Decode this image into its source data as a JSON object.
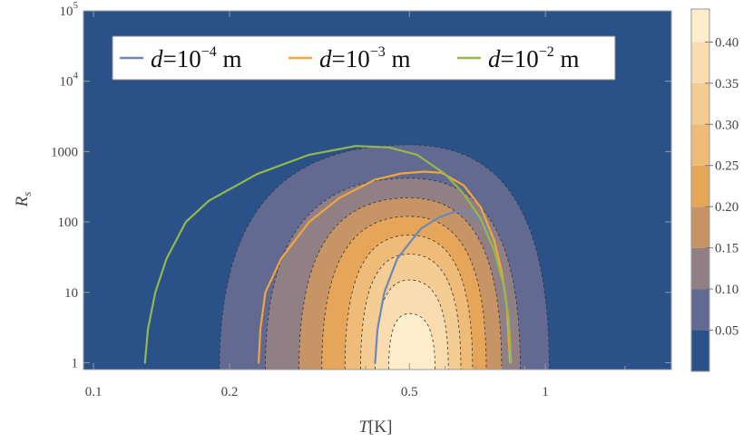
{
  "chart_data": {
    "type": "contour",
    "xlabel": "T[K]",
    "ylabel": "R_s",
    "x_scale": "log",
    "y_scale": "log",
    "xlim": [
      0.095,
      1.9
    ],
    "ylim": [
      0.8,
      100000
    ],
    "x_ticks": [
      {
        "value": 0.1,
        "label": "0.1"
      },
      {
        "value": 0.2,
        "label": "0.2"
      },
      {
        "value": 0.5,
        "label": "0.5"
      },
      {
        "value": 1,
        "label": "1"
      }
    ],
    "y_ticks": [
      {
        "value": 1,
        "label": "1",
        "sup": ""
      },
      {
        "value": 10,
        "label": "10",
        "sup": ""
      },
      {
        "value": 100,
        "label": "100",
        "sup": ""
      },
      {
        "value": 1000,
        "label": "1000",
        "sup": ""
      },
      {
        "value": 10000,
        "label": "10",
        "sup": "4"
      },
      {
        "value": 100000,
        "label": "10",
        "sup": "5"
      }
    ],
    "colorbar": {
      "min": 0,
      "max": 0.44,
      "ticks": [
        "0.05",
        "0.10",
        "0.15",
        "0.20",
        "0.25",
        "0.30",
        "0.35",
        "0.40"
      ],
      "tick_values": [
        0.05,
        0.1,
        0.15,
        0.2,
        0.25,
        0.3,
        0.35,
        0.4
      ]
    },
    "contour_levels": [
      {
        "level": 0.0,
        "color": "#2a5289",
        "peak_T": 0.5,
        "T_range": [
          0.19,
          1.02
        ],
        "Rs_max": 1250
      },
      {
        "level": 0.05,
        "color": "#636a92",
        "peak_T": 0.5,
        "T_range": [
          0.19,
          1.02
        ],
        "Rs_max": 1250
      },
      {
        "level": 0.1,
        "color": "#908086",
        "peak_T": 0.5,
        "T_range": [
          0.24,
          0.88
        ],
        "Rs_max": 420
      },
      {
        "level": 0.15,
        "color": "#c79565",
        "peak_T": 0.5,
        "T_range": [
          0.285,
          0.8
        ],
        "Rs_max": 220
      },
      {
        "level": 0.2,
        "color": "#e6a65a",
        "peak_T": 0.5,
        "T_range": [
          0.32,
          0.74
        ],
        "Rs_max": 120
      },
      {
        "level": 0.25,
        "color": "#efbb79",
        "peak_T": 0.5,
        "T_range": [
          0.36,
          0.69
        ],
        "Rs_max": 65
      },
      {
        "level": 0.3,
        "color": "#f4cd94",
        "peak_T": 0.5,
        "T_range": [
          0.39,
          0.65
        ],
        "Rs_max": 35
      },
      {
        "level": 0.35,
        "color": "#f9ddb0",
        "peak_T": 0.5,
        "T_range": [
          0.42,
          0.61
        ],
        "Rs_max": 15
      },
      {
        "level": 0.4,
        "color": "#fdedca",
        "peak_T": 0.5,
        "T_range": [
          0.45,
          0.57
        ],
        "Rs_max": 5
      }
    ],
    "series": [
      {
        "name": "d=10^-4 m",
        "base": "d=10",
        "exp": "−4",
        "unit": " m",
        "color": "#6b88b8",
        "points": [
          [
            0.42,
            1
          ],
          [
            0.425,
            3
          ],
          [
            0.44,
            10
          ],
          [
            0.47,
            30
          ],
          [
            0.53,
            80
          ],
          [
            0.58,
            115
          ],
          [
            0.63,
            140
          ],
          [
            0.68,
            135
          ],
          [
            0.73,
            100
          ],
          [
            0.77,
            55
          ],
          [
            0.8,
            20
          ],
          [
            0.82,
            6
          ],
          [
            0.833,
            1
          ]
        ]
      },
      {
        "name": "d=10^-3 m",
        "base": "d=10",
        "exp": "−3",
        "unit": " m",
        "color": "#f0a63c",
        "points": [
          [
            0.232,
            1
          ],
          [
            0.234,
            3
          ],
          [
            0.24,
            10
          ],
          [
            0.26,
            30
          ],
          [
            0.3,
            100
          ],
          [
            0.35,
            220
          ],
          [
            0.42,
            400
          ],
          [
            0.48,
            490
          ],
          [
            0.54,
            520
          ],
          [
            0.59,
            500
          ],
          [
            0.66,
            330
          ],
          [
            0.72,
            160
          ],
          [
            0.77,
            55
          ],
          [
            0.8,
            20
          ],
          [
            0.822,
            6
          ],
          [
            0.835,
            1
          ]
        ]
      },
      {
        "name": "d=10^-2 m",
        "base": "d=10",
        "exp": "−2",
        "unit": " m",
        "color": "#94b84a",
        "points": [
          [
            0.13,
            1
          ],
          [
            0.132,
            3
          ],
          [
            0.137,
            10
          ],
          [
            0.145,
            30
          ],
          [
            0.16,
            100
          ],
          [
            0.18,
            200
          ],
          [
            0.23,
            480
          ],
          [
            0.3,
            900
          ],
          [
            0.38,
            1200
          ],
          [
            0.45,
            1150
          ],
          [
            0.52,
            900
          ],
          [
            0.6,
            480
          ],
          [
            0.66,
            250
          ],
          [
            0.72,
            110
          ],
          [
            0.77,
            40
          ],
          [
            0.81,
            12
          ],
          [
            0.83,
            4
          ],
          [
            0.84,
            1
          ]
        ]
      }
    ]
  }
}
